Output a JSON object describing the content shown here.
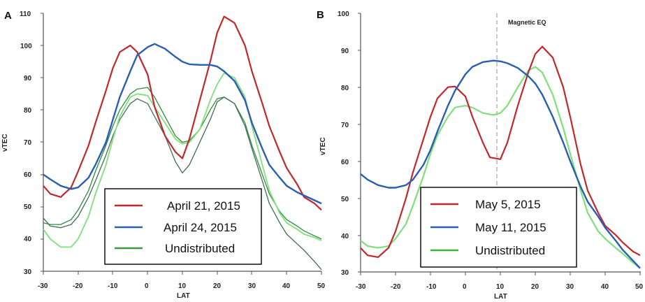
{
  "chart_data": [
    {
      "panel": "A",
      "type": "line",
      "xlabel": "LAT",
      "ylabel": "vTEC",
      "xlim": [
        -30,
        50
      ],
      "ylim": [
        30,
        110
      ],
      "xticks": [
        -30,
        -20,
        -10,
        0,
        10,
        20,
        30,
        40,
        50
      ],
      "yticks": [
        30,
        40,
        50,
        60,
        70,
        80,
        90,
        100,
        110
      ],
      "grid": false,
      "legend": "bottom-center",
      "legend_entries": [
        {
          "label": "April 21, 2015",
          "color": "#c0282a"
        },
        {
          "label": "April 24, 2015",
          "color": "#2a5fb0"
        },
        {
          "label": "Undistributed",
          "color": "#3a9a3a"
        }
      ],
      "series": [
        {
          "name": "April 21, 2015",
          "color": "#c0282a",
          "width": 2.2,
          "x": [
            -30,
            -28,
            -25,
            -22,
            -20,
            -17,
            -15,
            -12,
            -10,
            -8,
            -5,
            -3,
            0,
            2,
            5,
            8,
            10,
            12,
            15,
            18,
            20,
            22,
            25,
            28,
            30,
            33,
            35,
            38,
            40,
            43,
            45,
            48,
            50
          ],
          "y": [
            56.5,
            54,
            53,
            56,
            61,
            69,
            76,
            86,
            93,
            98,
            100,
            98,
            91,
            81,
            72,
            67,
            65,
            71,
            83,
            95,
            104,
            109,
            107,
            100,
            92,
            82,
            75,
            67,
            62,
            57,
            53,
            51,
            49
          ]
        },
        {
          "name": "April 24, 2015",
          "color": "#2a5fb0",
          "width": 2.4,
          "x": [
            -30,
            -28,
            -25,
            -22,
            -20,
            -17,
            -15,
            -12,
            -10,
            -8,
            -5,
            -3,
            0,
            2,
            5,
            8,
            10,
            12,
            15,
            18,
            20,
            22,
            25,
            28,
            30,
            33,
            35,
            38,
            40,
            43,
            45,
            48,
            50
          ],
          "y": [
            60,
            58.5,
            56.5,
            55.5,
            56,
            59,
            63,
            70,
            77,
            84,
            92,
            97,
            99.5,
            100.5,
            99,
            96.5,
            95,
            94.2,
            94,
            94,
            93.5,
            92,
            89,
            83,
            76,
            68,
            63,
            59,
            56.5,
            54.5,
            53.5,
            52,
            51
          ]
        },
        {
          "name": "Undistributed",
          "color": "#7ee07a",
          "width": 1.8,
          "x": [
            -30,
            -28,
            -25,
            -22,
            -20,
            -17,
            -15,
            -12,
            -10,
            -8,
            -5,
            -3,
            0,
            2,
            5,
            8,
            10,
            12,
            15,
            18,
            20,
            22,
            25,
            28,
            30,
            33,
            35,
            38,
            40,
            43,
            45,
            48,
            50
          ],
          "y": [
            43,
            40,
            37.5,
            37.5,
            40,
            47,
            54,
            63,
            71,
            78,
            84,
            85,
            84.5,
            81,
            76,
            71,
            69.5,
            70,
            74,
            83,
            88,
            91.5,
            90,
            84,
            75,
            63,
            55,
            48,
            45,
            43,
            41.5,
            40.5,
            39.5
          ]
        },
        {
          "color": "#2f8a3c",
          "width": 1.3,
          "x": [
            -30,
            -28,
            -25,
            -22,
            -20,
            -17,
            -15,
            -12,
            -10,
            -8,
            -5,
            -3,
            0,
            2,
            5,
            8,
            10,
            12,
            15,
            18,
            20,
            22,
            25,
            28,
            30,
            33,
            35,
            38,
            40,
            43,
            45,
            48,
            50
          ],
          "y": [
            45,
            44.5,
            44.5,
            46,
            49,
            55,
            61,
            69,
            75,
            80,
            85,
            86.5,
            87,
            84,
            78,
            72,
            70,
            70.5,
            74,
            80,
            83.5,
            84,
            82,
            76,
            69,
            60,
            54,
            48.5,
            46,
            44,
            42.5,
            41,
            40
          ]
        },
        {
          "color": "#3f6e50",
          "width": 1.3,
          "x": [
            -30,
            -28,
            -25,
            -22,
            -20,
            -17,
            -15,
            -12,
            -10,
            -8,
            -5,
            -3,
            0,
            2,
            5,
            8,
            10,
            12,
            15,
            18,
            20,
            22,
            25,
            28,
            30,
            33,
            35,
            38,
            40,
            43,
            45,
            48,
            50
          ],
          "y": [
            46.5,
            44,
            43.5,
            44.5,
            47,
            53,
            58,
            66,
            72,
            77,
            82,
            83.5,
            82,
            78,
            72,
            64,
            60.5,
            63,
            70,
            77,
            82.5,
            84,
            82,
            75,
            68,
            58,
            51,
            45,
            41.5,
            38.5,
            36.5,
            33,
            30.5
          ]
        }
      ]
    },
    {
      "panel": "B",
      "type": "line",
      "xlabel": "LAT",
      "ylabel": "vTEC",
      "xlim": [
        -30,
        50
      ],
      "ylim": [
        30,
        100
      ],
      "xticks": [
        -30,
        -20,
        -10,
        0,
        10,
        20,
        30,
        40,
        50
      ],
      "yticks": [
        30,
        40,
        50,
        60,
        70,
        80,
        90,
        100
      ],
      "grid": false,
      "legend": "bottom-center",
      "annotation": {
        "text": "Magnetic EQ",
        "x": 9
      },
      "legend_entries": [
        {
          "label": "May 5, 2015",
          "color": "#c0282a"
        },
        {
          "label": "May 11, 2015",
          "color": "#2a5fb0"
        },
        {
          "label": "Undistributed",
          "color": "#3ab53a"
        }
      ],
      "series": [
        {
          "name": "May 5, 2015",
          "color": "#c0282a",
          "width": 2.2,
          "x": [
            -30,
            -28,
            -25,
            -22,
            -20,
            -17,
            -15,
            -12,
            -10,
            -8,
            -5,
            -3,
            0,
            2,
            5,
            7,
            10,
            12,
            15,
            18,
            20,
            22,
            25,
            28,
            30,
            33,
            35,
            38,
            40,
            43,
            45,
            48,
            50
          ],
          "y": [
            36.5,
            34.5,
            34,
            36.5,
            41,
            50,
            57,
            66,
            72,
            77,
            80,
            80.2,
            77.5,
            72,
            65,
            61,
            60.5,
            65,
            75,
            84,
            89,
            91,
            88,
            80,
            72,
            59,
            52,
            46,
            42.5,
            40,
            38,
            35.5,
            34.5
          ]
        },
        {
          "name": "May 11, 2015",
          "color": "#2a5fb0",
          "width": 2.4,
          "x": [
            -30,
            -28,
            -25,
            -22,
            -20,
            -17,
            -15,
            -12,
            -10,
            -8,
            -5,
            -3,
            0,
            2,
            5,
            8,
            10,
            12,
            15,
            18,
            20,
            22,
            25,
            28,
            30,
            33,
            35,
            38,
            40,
            43,
            45,
            48,
            50
          ],
          "y": [
            56.5,
            55,
            53.5,
            52.8,
            52.8,
            53.5,
            55,
            59,
            63,
            68,
            75,
            79,
            83.5,
            85.5,
            86.8,
            87.2,
            87,
            86.5,
            85.2,
            83,
            81,
            78,
            72,
            65,
            60,
            53,
            49,
            45,
            42,
            38.5,
            36,
            33,
            31
          ]
        },
        {
          "name": "Undistributed",
          "color": "#7ee07a",
          "width": 2.2,
          "x": [
            -30,
            -28,
            -25,
            -22,
            -20,
            -17,
            -15,
            -12,
            -10,
            -8,
            -5,
            -3,
            0,
            2,
            5,
            8,
            10,
            12,
            15,
            18,
            20,
            22,
            25,
            28,
            30,
            33,
            35,
            38,
            40,
            43,
            45,
            48,
            50
          ],
          "y": [
            38.5,
            37,
            36.5,
            37,
            39,
            43,
            48,
            56,
            62,
            67,
            72,
            74.5,
            75,
            74.5,
            73,
            72.5,
            73,
            75,
            80,
            84.5,
            85.5,
            84,
            78,
            69,
            62,
            52,
            46,
            41,
            39,
            36.5,
            35,
            32.5,
            31
          ]
        }
      ]
    }
  ],
  "panels": {
    "a": {
      "letter": "A",
      "ylabel": "vTEC",
      "xlabel": "LAT",
      "yticks": [
        "110",
        "100",
        "90",
        "80",
        "70",
        "60",
        "50",
        "40",
        "30"
      ],
      "xticks": [
        "-30",
        "-20",
        "-10",
        "0",
        "10",
        "20",
        "30",
        "40",
        "50"
      ],
      "legend": [
        "April 21, 2015",
        "April 24, 2015",
        "Undistributed"
      ]
    },
    "b": {
      "letter": "B",
      "ylabel": "vTEC",
      "xlabel": "LAT",
      "annotation": "Magnetic EQ",
      "yticks": [
        "100",
        "90",
        "80",
        "70",
        "60",
        "50",
        "40",
        "30"
      ],
      "xticks": [
        "-30",
        "-20",
        "-10",
        "0",
        "10",
        "20",
        "30",
        "40",
        "50"
      ],
      "legend": [
        "May 5, 2015",
        "May 11, 2015",
        "Undistributed"
      ]
    }
  }
}
